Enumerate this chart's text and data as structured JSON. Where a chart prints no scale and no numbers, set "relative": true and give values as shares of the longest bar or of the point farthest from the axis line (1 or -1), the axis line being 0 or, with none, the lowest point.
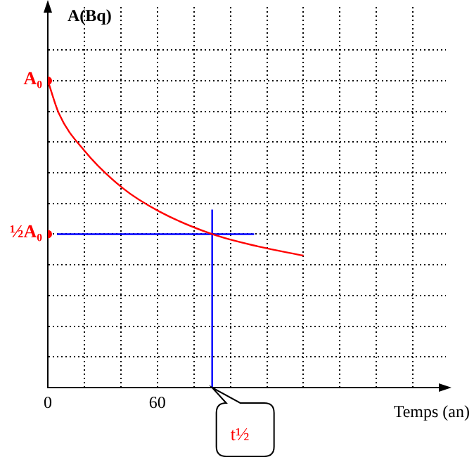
{
  "chart_data": {
    "type": "line",
    "relative": true,
    "xlabel": "Temps (an)",
    "ylabel": "A(Bq)",
    "annotations": [
      {
        "text": "t½",
        "x": 90,
        "y": 0
      }
    ],
    "series": [
      {
        "x": [
          0,
          6,
          20,
          41,
          61,
          90,
          115,
          140
        ],
        "values": [
          1,
          0.894,
          0.772,
          0.65,
          0.574,
          0.5,
          0.46,
          0.43
        ],
        "color": "#ff0000"
      },
      {
        "x": [
          5,
          113
        ],
        "values": [
          0.5,
          0.5
        ],
        "color": "#0000ff"
      },
      {
        "x": [
          90,
          90
        ],
        "values": [
          0,
          0.58
        ],
        "color": "#0000ff"
      },
      {
        "type": "scatter",
        "name": "A₀",
        "x": [
          0
        ],
        "values": [
          1
        ],
        "color": "#ff0000",
        "marker": "circle"
      },
      {
        "type": "scatter",
        "name": "½A₀",
        "x": [
          0
        ],
        "values": [
          0.5
        ],
        "color": "#ff0000",
        "marker": "circle"
      }
    ],
    "xlim": [
      0,
      218
    ],
    "xticks": [
      0,
      {
        "value": 20,
        "label": null
      },
      {
        "value": 40,
        "label": null
      },
      60,
      {
        "value": 80,
        "label": null
      },
      {
        "value": 100,
        "label": null
      },
      {
        "value": 120,
        "label": null
      },
      {
        "value": 140,
        "label": null
      },
      {
        "value": 160,
        "label": null
      },
      {
        "value": 180,
        "label": null
      },
      {
        "value": 200,
        "label": null
      }
    ],
    "grid": true,
    "marker": "none",
    "legend": false
  }
}
